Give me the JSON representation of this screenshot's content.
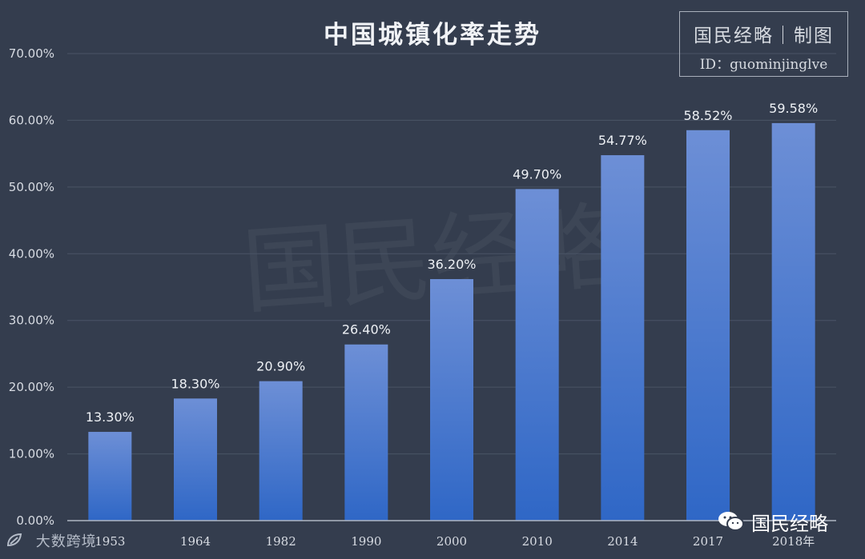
{
  "chart_data": {
    "type": "bar",
    "title": "中国城镇化率走势",
    "categories": [
      "1953",
      "1964",
      "1982",
      "1990",
      "2000",
      "2010",
      "2014",
      "2017",
      "2018年"
    ],
    "values": [
      13.3,
      18.3,
      20.9,
      26.4,
      36.2,
      49.7,
      54.77,
      58.52,
      59.58
    ],
    "data_labels": [
      "13.30%",
      "18.30%",
      "20.90%",
      "26.40%",
      "36.20%",
      "49.70%",
      "54.77%",
      "58.52%",
      "59.58%"
    ],
    "y_ticks": [
      "0.00%",
      "10.00%",
      "20.00%",
      "30.00%",
      "40.00%",
      "50.00%",
      "60.00%",
      "70.00%"
    ],
    "ylim": [
      0,
      70
    ],
    "grid": true,
    "legend": "none",
    "colors": {
      "background": "#343d4e",
      "bar_top": "#6d8fd6",
      "bar_bottom": "#2f67c6",
      "grid": "#4a5466",
      "axis": "#aeb6c4",
      "label": "#eef1f5",
      "tick": "#d7dbe2",
      "watermark": "#3d4656"
    }
  },
  "branding": {
    "stamp": "国民经略｜制图",
    "id_line": "ID：guominjinglve",
    "watermark": "国民经略",
    "bottom_left": "大数跨境",
    "wechat_account": "国民经略",
    "wechat_icon": "wechat-icon",
    "bottom_left_icon": "leaf-logo-icon"
  }
}
